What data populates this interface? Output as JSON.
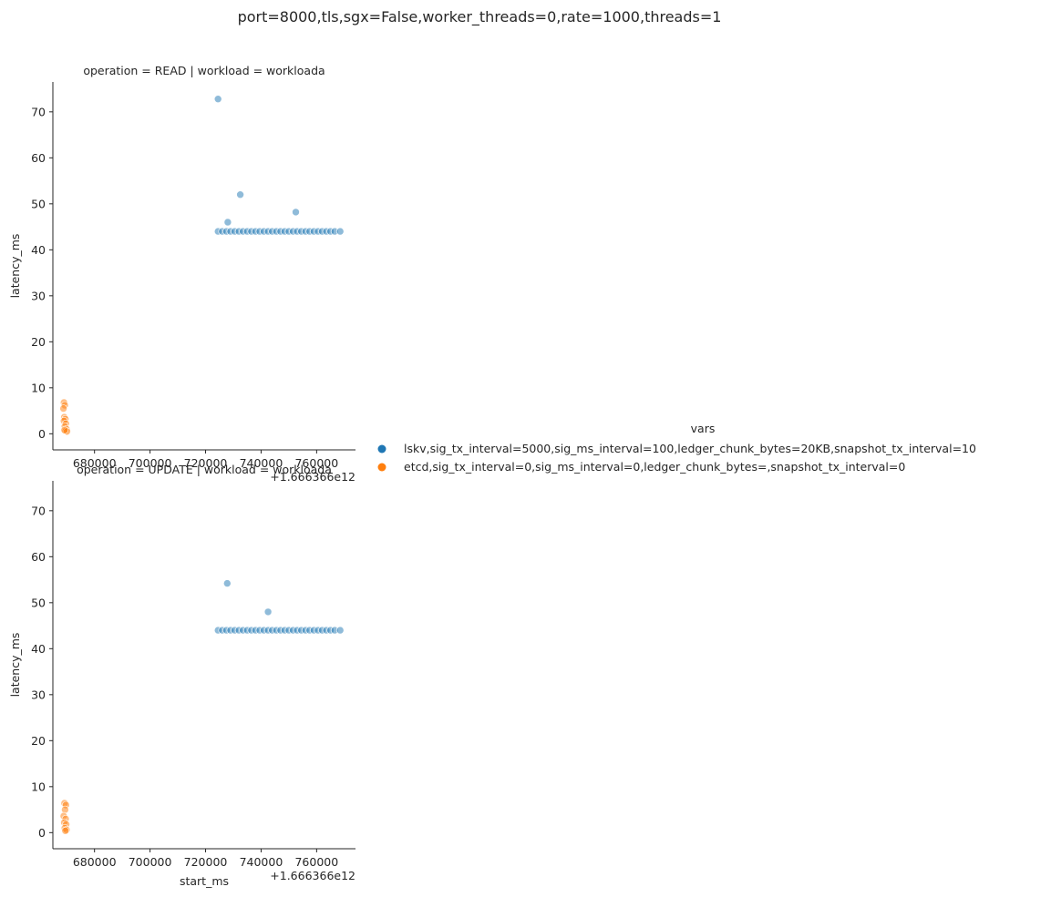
{
  "suptitle": "port=8000,tls,sgx=False,worker_threads=0,rate=1000,threads=1",
  "legend": {
    "title": "vars",
    "placement": "right",
    "entries": [
      {
        "label": "lskv,sig_tx_interval=5000,sig_ms_interval=100,ledger_chunk_bytes=20KB,snapshot_tx_interval=10",
        "color": "#1f77b4"
      },
      {
        "label": "etcd,sig_tx_interval=0,sig_ms_interval=0,ledger_chunk_bytes=,snapshot_tx_interval=0",
        "color": "#ff7f0e"
      }
    ]
  },
  "chart_data": [
    {
      "type": "scatter",
      "title": "operation = READ | workload = workloada",
      "xlabel": "",
      "ylabel": "latency_ms",
      "x_offset_label": "+1.666366e12",
      "xlim": [
        665000,
        774000
      ],
      "ylim": [
        -3.5,
        76.5
      ],
      "xticks": [
        680000,
        700000,
        720000,
        740000,
        760000
      ],
      "xtick_labels": [
        "680000",
        "700000",
        "720000",
        "740000",
        "760000"
      ],
      "yticks": [
        0,
        10,
        20,
        30,
        40,
        50,
        60,
        70
      ],
      "ytick_labels": [
        "0",
        "10",
        "20",
        "30",
        "40",
        "50",
        "60",
        "70"
      ],
      "grid": false,
      "series": [
        {
          "name": "lskv,sig_tx_interval=5000,sig_ms_interval=100,ledger_chunk_bytes=20KB,snapshot_tx_interval=10",
          "color": "#1f77b4",
          "points": [
            [
              724500,
              72.8
            ],
            [
              732500,
              52
            ],
            [
              728000,
              46
            ],
            [
              752500,
              48.2
            ],
            [
              724500,
              44
            ],
            [
              726000,
              44
            ],
            [
              727500,
              44
            ],
            [
              729000,
              44
            ],
            [
              730500,
              44
            ],
            [
              732000,
              44
            ],
            [
              733500,
              44
            ],
            [
              735000,
              44
            ],
            [
              736500,
              44
            ],
            [
              738000,
              44
            ],
            [
              739500,
              44
            ],
            [
              741000,
              44
            ],
            [
              742500,
              44
            ],
            [
              744000,
              44
            ],
            [
              745500,
              44
            ],
            [
              747000,
              44
            ],
            [
              748500,
              44
            ],
            [
              750000,
              44
            ],
            [
              751500,
              44
            ],
            [
              753000,
              44
            ],
            [
              754500,
              44
            ],
            [
              756000,
              44
            ],
            [
              757500,
              44
            ],
            [
              759000,
              44
            ],
            [
              760500,
              44
            ],
            [
              762000,
              44
            ],
            [
              763500,
              44
            ],
            [
              765000,
              44
            ],
            [
              766500,
              44
            ],
            [
              768500,
              44
            ]
          ]
        },
        {
          "name": "etcd,sig_tx_interval=0,sig_ms_interval=0,ledger_chunk_bytes=,snapshot_tx_interval=0",
          "color": "#ff7f0e",
          "points": [
            [
              669000,
              6.8
            ],
            [
              669300,
              6.2
            ],
            [
              668800,
              5.5
            ],
            [
              669100,
              3.6
            ],
            [
              669500,
              3.2
            ],
            [
              669000,
              2.8
            ],
            [
              669700,
              2.2
            ],
            [
              669300,
              1.6
            ],
            [
              669900,
              1.0
            ],
            [
              669600,
              0.6
            ],
            [
              670100,
              0.5
            ],
            [
              669200,
              0.8
            ]
          ]
        }
      ]
    },
    {
      "type": "scatter",
      "title": "operation = UPDATE | workload = workloada",
      "xlabel": "start_ms",
      "ylabel": "latency_ms",
      "x_offset_label": "+1.666366e12",
      "xlim": [
        665000,
        774000
      ],
      "ylim": [
        -3.5,
        76.5
      ],
      "xticks": [
        680000,
        700000,
        720000,
        740000,
        760000
      ],
      "xtick_labels": [
        "680000",
        "700000",
        "720000",
        "740000",
        "760000"
      ],
      "yticks": [
        0,
        10,
        20,
        30,
        40,
        50,
        60,
        70
      ],
      "ytick_labels": [
        "0",
        "10",
        "20",
        "30",
        "40",
        "50",
        "60",
        "70"
      ],
      "grid": false,
      "series": [
        {
          "name": "lskv,sig_tx_interval=5000,sig_ms_interval=100,ledger_chunk_bytes=20KB,snapshot_tx_interval=10",
          "color": "#1f77b4",
          "points": [
            [
              727800,
              54.2
            ],
            [
              742500,
              48
            ],
            [
              724500,
              44
            ],
            [
              726000,
              44
            ],
            [
              727500,
              44
            ],
            [
              729000,
              44
            ],
            [
              730500,
              44
            ],
            [
              732000,
              44
            ],
            [
              733500,
              44
            ],
            [
              735000,
              44
            ],
            [
              736500,
              44
            ],
            [
              738000,
              44
            ],
            [
              739500,
              44
            ],
            [
              741000,
              44
            ],
            [
              742500,
              44
            ],
            [
              744000,
              44
            ],
            [
              745500,
              44
            ],
            [
              747000,
              44
            ],
            [
              748500,
              44
            ],
            [
              750000,
              44
            ],
            [
              751500,
              44
            ],
            [
              753000,
              44
            ],
            [
              754500,
              44
            ],
            [
              756000,
              44
            ],
            [
              757500,
              44
            ],
            [
              759000,
              44
            ],
            [
              760500,
              44
            ],
            [
              762000,
              44
            ],
            [
              763500,
              44
            ],
            [
              765000,
              44
            ],
            [
              766500,
              44
            ],
            [
              768500,
              44
            ]
          ]
        },
        {
          "name": "etcd,sig_tx_interval=0,sig_ms_interval=0,ledger_chunk_bytes=,snapshot_tx_interval=0",
          "color": "#ff7f0e",
          "points": [
            [
              669200,
              6.4
            ],
            [
              669700,
              6.0
            ],
            [
              669400,
              5.0
            ],
            [
              668900,
              3.6
            ],
            [
              669600,
              3.0
            ],
            [
              669100,
              2.2
            ],
            [
              669800,
              1.8
            ],
            [
              669300,
              1.0
            ],
            [
              669900,
              0.6
            ],
            [
              669500,
              0.4
            ]
          ]
        }
      ]
    }
  ]
}
